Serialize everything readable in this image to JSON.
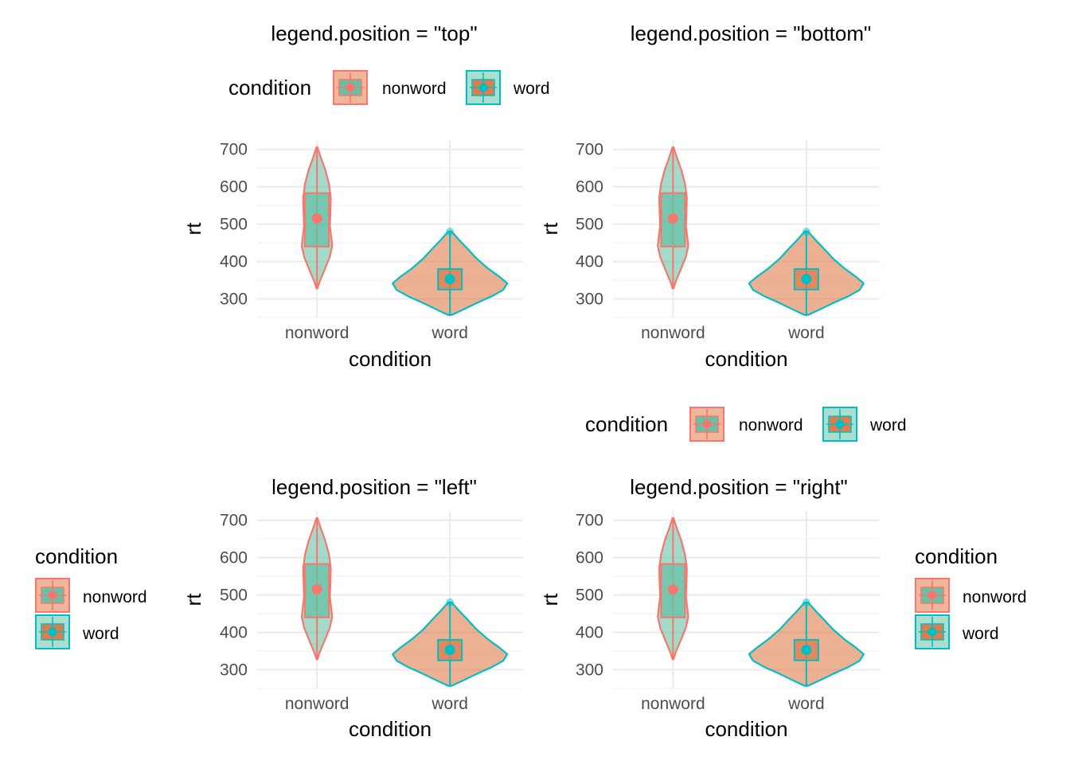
{
  "colors": {
    "nonword": "#F8766D",
    "word": "#00BFC4",
    "nonword_fill": "#66C2A5",
    "word_fill": "#E07B4A",
    "grid_major": "#EBEBEB",
    "grid_minor": "#F2F2F2",
    "tick_text": "#4D4D4D"
  },
  "legend": {
    "title": "condition",
    "items": [
      {
        "key": "nonword",
        "label": "nonword"
      },
      {
        "key": "word",
        "label": "word"
      }
    ]
  },
  "chart_data": [
    {
      "type": "violin",
      "title": "legend.position = \"top\"",
      "legend_position": "top",
      "xlabel": "condition",
      "ylabel": "rt",
      "categories": [
        "nonword",
        "word"
      ],
      "yticks": [
        300,
        400,
        500,
        600,
        700
      ],
      "ylim": [
        250,
        725
      ],
      "grid": true,
      "series": [
        {
          "name": "nonword",
          "min": 328,
          "q1": 440,
          "median": 515,
          "mean": 515,
          "q3": 583,
          "max": 706
        },
        {
          "name": "word",
          "min": 257,
          "q1": 325,
          "median": 353,
          "mean": 353,
          "q3": 380,
          "max": 480
        }
      ]
    },
    {
      "type": "violin",
      "title": "legend.position = \"bottom\"",
      "legend_position": "bottom",
      "xlabel": "condition",
      "ylabel": "rt",
      "categories": [
        "nonword",
        "word"
      ],
      "yticks": [
        300,
        400,
        500,
        600,
        700
      ],
      "ylim": [
        250,
        725
      ],
      "grid": true,
      "series": [
        {
          "name": "nonword",
          "min": 328,
          "q1": 440,
          "median": 515,
          "mean": 515,
          "q3": 583,
          "max": 706
        },
        {
          "name": "word",
          "min": 257,
          "q1": 325,
          "median": 353,
          "mean": 353,
          "q3": 380,
          "max": 480
        }
      ]
    },
    {
      "type": "violin",
      "title": "legend.position = \"left\"",
      "legend_position": "left",
      "xlabel": "condition",
      "ylabel": "rt",
      "categories": [
        "nonword",
        "word"
      ],
      "yticks": [
        300,
        400,
        500,
        600,
        700
      ],
      "ylim": [
        250,
        725
      ],
      "grid": true,
      "series": [
        {
          "name": "nonword",
          "min": 328,
          "q1": 440,
          "median": 515,
          "mean": 515,
          "q3": 583,
          "max": 706
        },
        {
          "name": "word",
          "min": 257,
          "q1": 325,
          "median": 353,
          "mean": 353,
          "q3": 380,
          "max": 480
        }
      ]
    },
    {
      "type": "violin",
      "title": "legend.position = \"right\"",
      "legend_position": "right",
      "xlabel": "condition",
      "ylabel": "rt",
      "categories": [
        "nonword",
        "word"
      ],
      "yticks": [
        300,
        400,
        500,
        600,
        700
      ],
      "ylim": [
        250,
        725
      ],
      "grid": true,
      "series": [
        {
          "name": "nonword",
          "min": 328,
          "q1": 440,
          "median": 515,
          "mean": 515,
          "q3": 583,
          "max": 706
        },
        {
          "name": "word",
          "min": 257,
          "q1": 325,
          "median": 353,
          "mean": 353,
          "q3": 380,
          "max": 480
        }
      ]
    }
  ]
}
